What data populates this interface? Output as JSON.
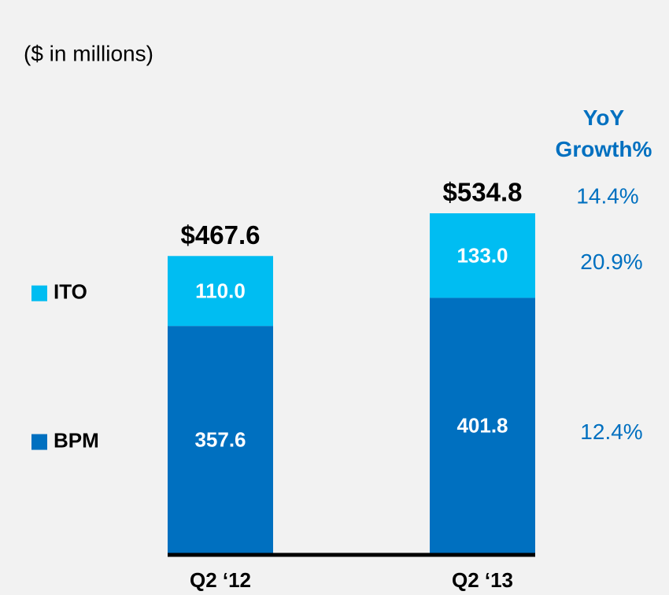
{
  "chart_data": {
    "type": "stacked-bar",
    "title": "($ in millions)",
    "categories": [
      "Q2 ‘12",
      "Q2 ‘13"
    ],
    "series": [
      {
        "name": "BPM",
        "color": "#0070c0",
        "values": [
          357.6,
          401.8
        ],
        "value_labels": [
          "357.6",
          "401.8"
        ],
        "growth": {
          "value": 12.4,
          "label": "12.4%"
        }
      },
      {
        "name": "ITO",
        "color": "#00bdf2",
        "values": [
          110.0,
          133.0
        ],
        "value_labels": [
          "110.0",
          "133.0"
        ],
        "growth": {
          "value": 20.9,
          "label": "20.9%"
        }
      }
    ],
    "totals": [
      467.6,
      534.8
    ],
    "total_labels": [
      "$467.6",
      "$534.8"
    ],
    "growth_title": "YoY Growth%",
    "total_growth": {
      "value": 14.4,
      "label": "14.4%"
    }
  }
}
